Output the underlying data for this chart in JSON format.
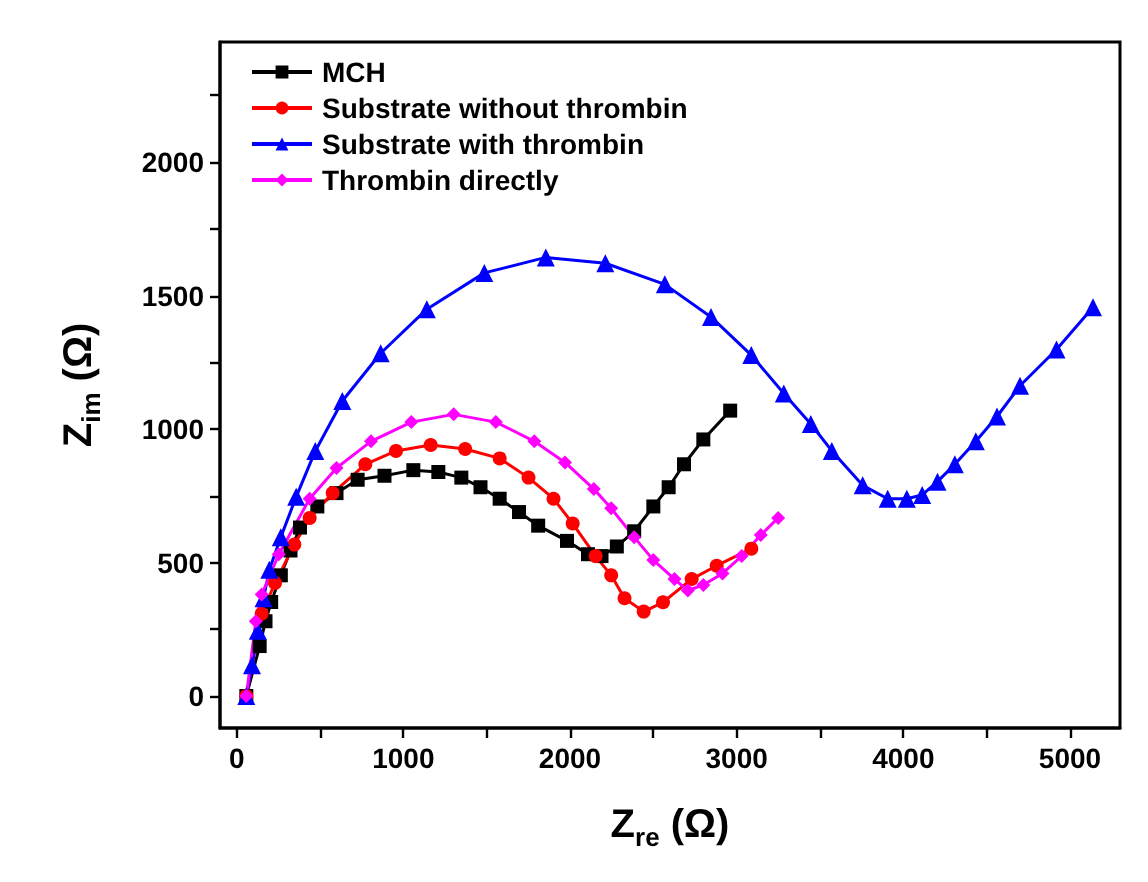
{
  "chart_data": {
    "type": "line",
    "xlabel": "Z$_{re}$ (Ω)",
    "ylabel": "Z$_{im}$ (Ω)",
    "xlim": [
      -100,
      5300
    ],
    "ylim": [
      -120,
      2450
    ],
    "xticks": [
      0,
      {
        "value": 500,
        "label": null
      },
      1000,
      {
        "value": 1500,
        "label": null
      },
      2000,
      {
        "value": 2500,
        "label": null
      },
      3000,
      {
        "value": 3500,
        "label": null
      },
      4000,
      {
        "value": 4500,
        "label": null
      },
      5000
    ],
    "yticks": [
      0,
      {
        "value": 250,
        "label": null
      },
      500,
      {
        "value": 750,
        "label": null
      },
      1000,
      {
        "value": 1250,
        "label": null
      },
      1500,
      {
        "value": 1750,
        "label": null
      },
      2000,
      {
        "value": 2250,
        "label": null
      }
    ],
    "grid": false,
    "legend": "top left",
    "line_style": "solid",
    "series": [
      {
        "name": "MCH",
        "color": "#000000",
        "marker": "square",
        "x": [
          58,
          138,
          173,
          207,
          265,
          323,
          380,
          484,
          599,
          726,
          887,
          1060,
          1210,
          1348,
          1463,
          1578,
          1694,
          1809,
          1982,
          2108,
          2189,
          2281,
          2385,
          2500,
          2592,
          2684,
          2800,
          2961
        ],
        "values": [
          0,
          187,
          280,
          352,
          452,
          545,
          631,
          710,
          760,
          810,
          825,
          846,
          839,
          818,
          782,
          739,
          689,
          638,
          581,
          531,
          524,
          560,
          617,
          710,
          782,
          868,
          961,
          1069
        ]
      },
      {
        "name": "Substrate without thrombin",
        "color": "#ff0000",
        "marker": "circle",
        "x": [
          58,
          150,
          230,
          346,
          438,
          576,
          772,
          956,
          1164,
          1371,
          1578,
          1751,
          1901,
          2016,
          2154,
          2247,
          2327,
          2442,
          2558,
          2730,
          2880,
          3088
        ],
        "values": [
          0,
          308,
          423,
          567,
          667,
          760,
          868,
          918,
          940,
          925,
          890,
          818,
          739,
          646,
          524,
          452,
          366,
          316,
          351,
          438,
          488,
          552
        ]
      },
      {
        "name": "Substrate with thrombin",
        "color": "#0000ff",
        "marker": "triangle",
        "x": [
          58,
          92,
          127,
          161,
          196,
          265,
          357,
          472,
          634,
          864,
          1141,
          1486,
          1855,
          2212,
          2569,
          2846,
          3088,
          3283,
          3445,
          3571,
          3756,
          3906,
          4021,
          4113,
          4205,
          4309,
          4435,
          4562,
          4700,
          4919,
          5138
        ],
        "values": [
          0,
          115,
          244,
          366,
          473,
          595,
          746,
          918,
          1105,
          1284,
          1449,
          1585,
          1643,
          1621,
          1542,
          1420,
          1277,
          1133,
          1019,
          918,
          789,
          739,
          739,
          753,
          803,
          868,
          954,
          1047,
          1162,
          1298,
          1456
        ]
      },
      {
        "name": "Thrombin directly",
        "color": "#ff00ff",
        "marker": "diamond",
        "x": [
          58,
          115,
          150,
          253,
          438,
          599,
          806,
          1048,
          1302,
          1555,
          1786,
          1970,
          2143,
          2247,
          2385,
          2500,
          2627,
          2707,
          2800,
          2915,
          3030,
          3145,
          3249
        ],
        "values": [
          0,
          280,
          380,
          531,
          739,
          854,
          954,
          1026,
          1055,
          1026,
          954,
          875,
          775,
          703,
          595,
          509,
          438,
          395,
          416,
          459,
          524,
          603,
          667
        ]
      }
    ]
  }
}
